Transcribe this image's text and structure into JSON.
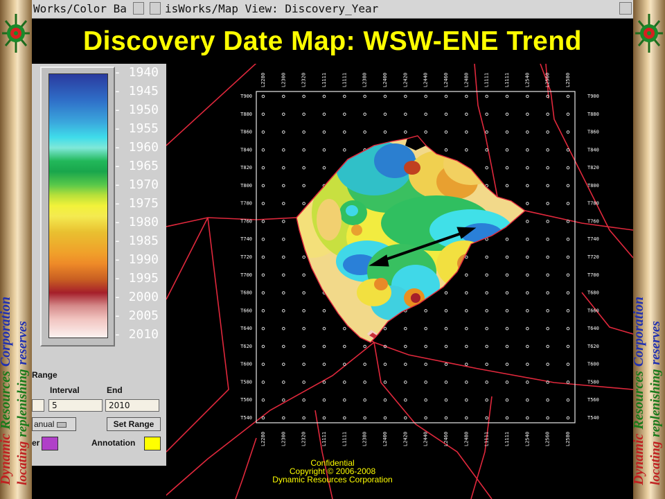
{
  "window": {
    "colorbar_title": "Works/Color Ba",
    "map_title": "isWorks/Map View: Discovery_Year"
  },
  "slide_title": "Discovery Date Map: WSW-ENE Trend",
  "sidebar_text": {
    "line1_word1": "Dynamic",
    "line1_word2": "Resources",
    "line1_word3": "Corporation",
    "line2_word1": "locating",
    "line2_word2": "replenishing",
    "line2_word3": "reserves"
  },
  "colorbar": {
    "ticks": [
      "- 1940",
      "- 1945",
      "- 1950",
      "- 1955",
      "- 1960",
      "- 1965",
      "- 1970",
      "- 1975",
      "- 1980",
      "- 1985",
      "- 1990",
      "- 1995",
      "- 2000",
      "- 2005",
      "- 2010"
    ]
  },
  "range_controls": {
    "section_label": "Range",
    "interval_label": "Interval",
    "end_label": "End",
    "interval_value": "5",
    "end_value": "2010",
    "mode_label": "anual",
    "set_range_label": "Set Range",
    "border_label": "er",
    "annotation_label": "Annotation",
    "border_color": "#b040c8",
    "annotation_color": "#ffff00"
  },
  "map": {
    "top_labels": [
      "L2280",
      "L2300",
      "L2320",
      "L1111",
      "L1111",
      "L2380",
      "L2400",
      "L2420",
      "L2440",
      "L2460",
      "L2480",
      "L1111",
      "L1111",
      "L2540",
      "L2560",
      "L2580"
    ],
    "bottom_labels": [
      "L2280",
      "L2300",
      "L2320",
      "L1111",
      "L1111",
      "L2380",
      "L2400",
      "L2420",
      "L2440",
      "L2460",
      "L2480",
      "L1111",
      "L1111",
      "L2540",
      "L2560",
      "L2580"
    ],
    "left_labels": [
      "T900",
      "T880",
      "T860",
      "T840",
      "T820",
      "T800",
      "T780",
      "T760",
      "T740",
      "T720",
      "T700",
      "T680",
      "T660",
      "T640",
      "T620",
      "T600",
      "T580",
      "T560",
      "T540"
    ],
    "right_labels": [
      "T900",
      "T880",
      "T860",
      "T840",
      "T820",
      "T800",
      "T780",
      "T760",
      "T740",
      "T720",
      "T700",
      "T680",
      "T660",
      "T640",
      "T620",
      "T600",
      "T580",
      "T560",
      "T540"
    ],
    "boundary_color": "#e0283c",
    "arrow_color": "#000000"
  },
  "footer": {
    "line1": "Confidential",
    "line2": "Copyright © 2006-2008",
    "line3": "Dynamic Resources Corporation"
  }
}
